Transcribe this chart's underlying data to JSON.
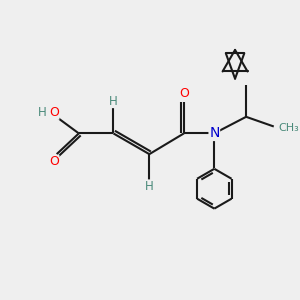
{
  "background_color": "#efefef",
  "atom_color_O": "#ff0000",
  "atom_color_N": "#0000cc",
  "atom_color_H": "#4a8a7a",
  "bond_color": "#1a1a1a",
  "figsize": [
    3.0,
    3.0
  ],
  "dpi": 100,
  "xlim": [
    0,
    10
  ],
  "ylim": [
    0,
    10
  ]
}
